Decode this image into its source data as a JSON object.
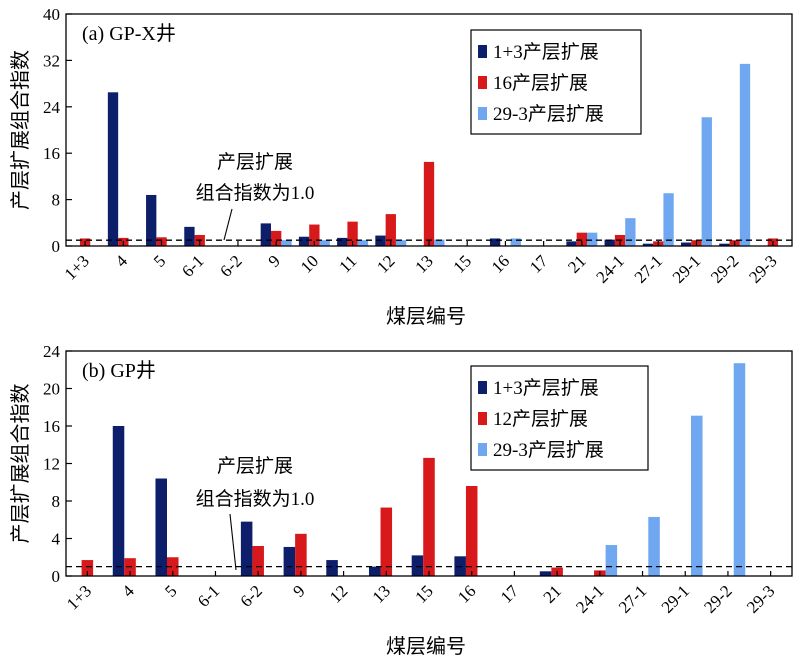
{
  "chart_data": [
    {
      "type": "bar",
      "title": "(a) GP-X井",
      "xlabel": "煤层编号",
      "ylabel": "产层扩展组合指数",
      "ylim": [
        0,
        40
      ],
      "yticks": [
        0,
        8,
        16,
        24,
        32,
        40
      ],
      "categories": [
        "1+3",
        "4",
        "5",
        "6-1",
        "6-2",
        "9",
        "10",
        "11",
        "12",
        "13",
        "15",
        "16",
        "17",
        "21",
        "24-1",
        "27-1",
        "29-1",
        "29-2",
        "29-3"
      ],
      "series": [
        {
          "name": "1+3产层扩展",
          "color": "#0d1f6b",
          "values": [
            null,
            26.5,
            8.8,
            3.3,
            null,
            3.9,
            1.6,
            1.4,
            1.8,
            null,
            null,
            1.3,
            null,
            0.8,
            1.1,
            0.4,
            0.6,
            0.4,
            null
          ]
        },
        {
          "name": "16产层扩展",
          "color": "#d7191c",
          "values": [
            1.3,
            1.4,
            1.5,
            1.9,
            null,
            2.6,
            3.7,
            4.2,
            5.5,
            14.5,
            null,
            null,
            null,
            2.3,
            1.9,
            0.8,
            1.0,
            1.0,
            1.3
          ]
        },
        {
          "name": "29-3产层扩展",
          "color": "#6fa8f0",
          "values": [
            null,
            null,
            null,
            null,
            null,
            1.0,
            1.0,
            1.0,
            1.0,
            1.1,
            null,
            1.3,
            null,
            2.3,
            4.8,
            9.1,
            22.2,
            31.4,
            null
          ]
        }
      ],
      "reference_line": {
        "value": 1.0,
        "style": "dashed"
      },
      "annotation": {
        "lines": [
          "产层扩展",
          "组合指数为1.0"
        ]
      },
      "legend_position": "top-right",
      "grid": false
    },
    {
      "type": "bar",
      "title": "(b) GP井",
      "xlabel": "煤层编号",
      "ylabel": "产层扩展组合指数",
      "ylim": [
        0,
        24
      ],
      "yticks": [
        0,
        4,
        8,
        12,
        16,
        20,
        24
      ],
      "categories": [
        "1+3",
        "4",
        "5",
        "6-1",
        "6-2",
        "9",
        "12",
        "13",
        "15",
        "16",
        "17",
        "21",
        "24-1",
        "27-1",
        "29-1",
        "29-2",
        "29-3"
      ],
      "series": [
        {
          "name": "1+3产层扩展",
          "color": "#0d1f6b",
          "values": [
            null,
            16.0,
            10.4,
            null,
            5.8,
            3.1,
            1.7,
            1.0,
            2.2,
            2.1,
            null,
            0.5,
            null,
            null,
            null,
            null,
            null
          ]
        },
        {
          "name": "12产层扩展",
          "color": "#d7191c",
          "values": [
            1.7,
            1.9,
            2.0,
            null,
            3.2,
            4.5,
            null,
            7.3,
            12.6,
            9.6,
            null,
            0.9,
            0.6,
            null,
            null,
            null,
            null
          ]
        },
        {
          "name": "29-3产层扩展",
          "color": "#6fa8f0",
          "values": [
            null,
            null,
            null,
            null,
            null,
            null,
            null,
            null,
            null,
            null,
            null,
            null,
            3.3,
            6.3,
            17.1,
            22.7,
            null
          ]
        }
      ],
      "reference_line": {
        "value": 1.0,
        "style": "dashed"
      },
      "annotation": {
        "lines": [
          "产层扩展",
          "组合指数为1.0"
        ]
      },
      "legend_position": "top-right",
      "grid": false
    }
  ]
}
